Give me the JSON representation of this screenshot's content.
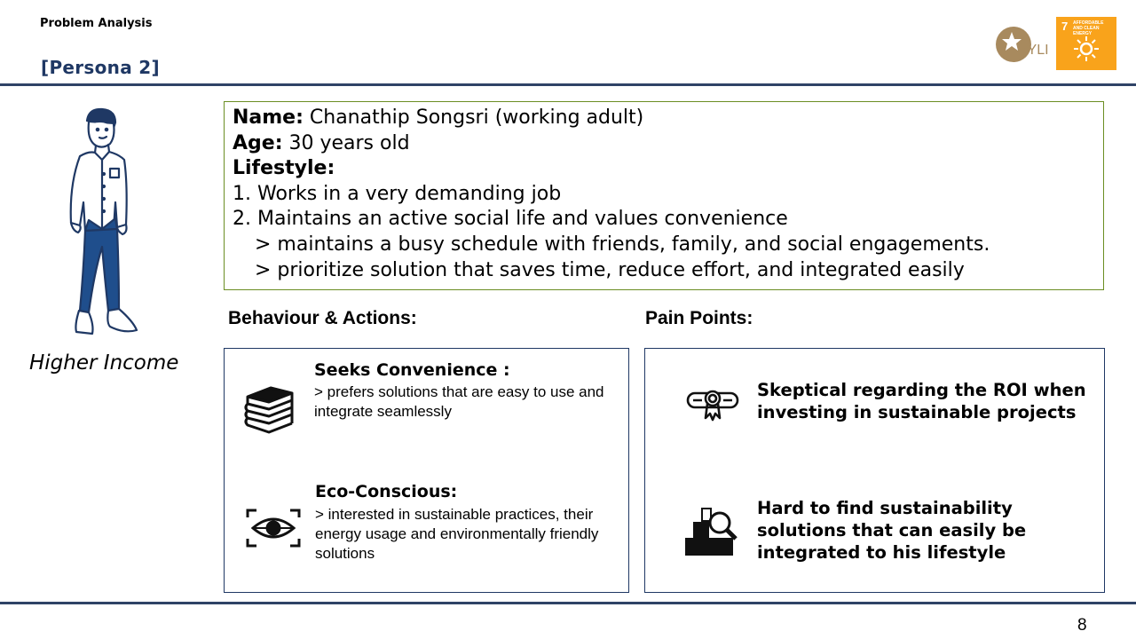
{
  "header": {
    "section": "Problem Analysis",
    "persona": "[Persona 2]",
    "logo_text": "HYLI",
    "sdg_number": "7",
    "sdg_label": "AFFORDABLE AND CLEAN ENERGY"
  },
  "persona": {
    "income_label": "Higher Income",
    "name_key": "Name:",
    "name_value": " Chanathip Songsri (working adult)",
    "age_key": "Age:",
    "age_value": "  30 years old",
    "lifestyle_key": "Lifestyle:",
    "lifestyle_items": [
      "1.  Works in a very demanding job",
      "2. Maintains an active social life and values convenience",
      "> maintains a busy schedule with friends, family, and social engagements.",
      "> prioritize solution that saves time, reduce effort, and integrated easily"
    ]
  },
  "behaviour": {
    "heading": "Behaviour & Actions:",
    "items": [
      {
        "title": "Seeks Convenience :",
        "body": "> prefers solutions that are easy to use and integrate seamlessly",
        "icon": "books-icon"
      },
      {
        "title": "Eco-Conscious:",
        "body": "> interested in sustainable practices, their energy usage  and environmentally friendly solutions",
        "icon": "eye-scan-icon"
      }
    ]
  },
  "pain_points": {
    "heading": "Pain Points:",
    "items": [
      {
        "text": "Skeptical regarding the ROI when investing in sustainable projects",
        "icon": "certificate-icon"
      },
      {
        "text": "Hard to find sustainability solutions that can easily be integrated to his lifestyle",
        "icon": "search-boxes-icon"
      }
    ]
  },
  "page_number": "8",
  "colors": {
    "accent": "#1f3864",
    "rule": "#2f4366",
    "info_border": "#6b8e23",
    "sdg": "#f9a31b"
  }
}
